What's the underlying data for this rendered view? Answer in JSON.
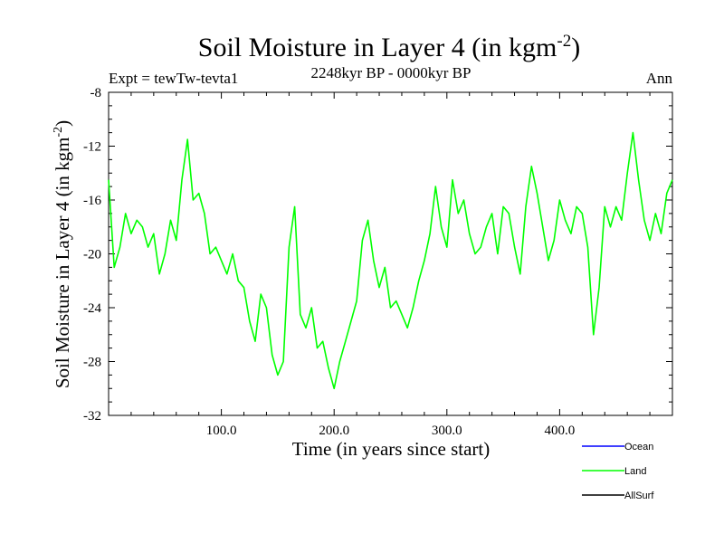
{
  "chart_data": {
    "type": "line",
    "title": "Soil Moisture in Layer 4 (in kgm",
    "title_superscript": "-2",
    "title_close": ")",
    "subtitle": "2248kyr BP - 0000kyr BP",
    "left_label": "Expt = tewTw-tevta1",
    "right_label": "Ann",
    "xlabel": "Time (in years since start)",
    "ylabel": "Soil Moisture in Layer 4 (in kgm",
    "ylabel_superscript": "-2",
    "ylabel_close": ")",
    "xlim": [
      0,
      500
    ],
    "ylim": [
      -32,
      -8
    ],
    "x_ticks": [
      100,
      200,
      300,
      400
    ],
    "x_tick_labels": [
      "100.0",
      "200.0",
      "300.0",
      "400.0"
    ],
    "y_ticks": [
      -32,
      -28,
      -24,
      -20,
      -16,
      -12,
      -8
    ],
    "y_tick_labels": [
      "-32",
      "-28",
      "-24",
      "-20",
      "-16",
      "-12",
      "-8"
    ],
    "colors": {
      "ocean": "#0000ff",
      "land": "#00ff00",
      "allsurf": "#000000"
    },
    "legend": [
      {
        "name": "Ocean",
        "color_key": "ocean"
      },
      {
        "name": "Land",
        "color_key": "land"
      },
      {
        "name": "AllSurf",
        "color_key": "allsurf"
      }
    ],
    "legend_position": "bottom-right",
    "series": [
      {
        "name": "Land",
        "color_key": "land",
        "x": [
          0,
          5,
          10,
          15,
          20,
          25,
          30,
          35,
          40,
          45,
          50,
          55,
          60,
          65,
          70,
          75,
          80,
          85,
          90,
          95,
          100,
          105,
          110,
          115,
          120,
          125,
          130,
          135,
          140,
          145,
          150,
          155,
          160,
          165,
          170,
          175,
          180,
          185,
          190,
          195,
          200,
          205,
          210,
          215,
          220,
          225,
          230,
          235,
          240,
          245,
          250,
          255,
          260,
          265,
          270,
          275,
          280,
          285,
          290,
          295,
          300,
          305,
          310,
          315,
          320,
          325,
          330,
          335,
          340,
          345,
          350,
          355,
          360,
          365,
          370,
          375,
          380,
          385,
          390,
          395,
          400,
          405,
          410,
          415,
          420,
          425,
          430,
          435,
          440,
          445,
          450,
          455,
          460,
          465,
          470,
          475,
          480,
          485,
          490,
          495,
          500
        ],
        "values": [
          -14.5,
          -21.0,
          -19.5,
          -17.0,
          -18.5,
          -17.5,
          -18.0,
          -19.5,
          -18.5,
          -21.5,
          -20.0,
          -17.5,
          -19.0,
          -14.5,
          -11.5,
          -16.0,
          -15.5,
          -17.0,
          -20.0,
          -19.5,
          -20.5,
          -21.5,
          -20.0,
          -22.0,
          -22.5,
          -25.0,
          -26.5,
          -23.0,
          -24.0,
          -27.5,
          -29.0,
          -28.0,
          -19.5,
          -16.5,
          -24.5,
          -25.5,
          -24.0,
          -27.0,
          -26.5,
          -28.5,
          -30.0,
          -28.0,
          -26.5,
          -25.0,
          -23.5,
          -19.0,
          -17.5,
          -20.5,
          -22.5,
          -21.0,
          -24.0,
          -23.5,
          -24.5,
          -25.5,
          -24.0,
          -22.0,
          -20.5,
          -18.5,
          -15.0,
          -18.0,
          -19.5,
          -14.5,
          -17.0,
          -16.0,
          -18.5,
          -20.0,
          -19.5,
          -18.0,
          -17.0,
          -20.0,
          -16.5,
          -17.0,
          -19.5,
          -21.5,
          -16.5,
          -13.5,
          -15.5,
          -18.0,
          -20.5,
          -19.0,
          -16.0,
          -17.5,
          -18.5,
          -16.5,
          -17.0,
          -19.5,
          -26.0,
          -22.5,
          -16.5,
          -18.0,
          -16.5,
          -17.5,
          -14.0,
          -11.0,
          -14.5,
          -17.5,
          -19.0,
          -17.0,
          -18.5,
          -15.5,
          -14.5
        ]
      }
    ]
  }
}
